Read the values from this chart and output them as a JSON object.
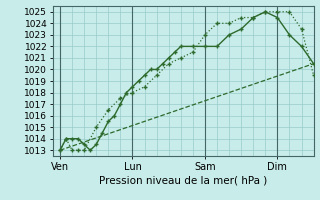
{
  "background_color": "#c8ece9",
  "grid_color": "#99cccc",
  "line_color": "#2d6a2d",
  "vline_color": "#446666",
  "ylim": [
    1012.5,
    1025.5
  ],
  "yticks": [
    1013,
    1014,
    1015,
    1016,
    1017,
    1018,
    1019,
    1020,
    1021,
    1022,
    1023,
    1024,
    1025
  ],
  "xlabel": "Pression niveau de la mer( hPa )",
  "xtick_labels": [
    "Ven",
    "Lun",
    "Sam",
    "Dim"
  ],
  "xtick_positions": [
    0,
    3,
    6,
    9
  ],
  "xlim": [
    -0.3,
    10.5
  ],
  "series1_x": [
    0.0,
    0.25,
    0.5,
    0.75,
    1.0,
    1.25,
    1.5,
    1.75,
    2.0,
    2.25,
    2.5,
    2.75,
    3.0,
    3.25,
    3.5,
    3.75,
    4.0,
    4.25,
    4.5,
    4.75,
    5.0,
    5.5,
    6.0,
    6.5,
    7.0,
    7.5,
    8.0,
    8.5,
    9.0,
    9.5,
    10.0,
    10.5
  ],
  "series1_y": [
    1013.0,
    1014.0,
    1014.0,
    1014.0,
    1013.5,
    1013.0,
    1013.5,
    1014.5,
    1015.5,
    1016.0,
    1017.0,
    1018.0,
    1018.5,
    1019.0,
    1019.5,
    1020.0,
    1020.0,
    1020.5,
    1021.0,
    1021.5,
    1022.0,
    1022.0,
    1022.0,
    1022.0,
    1023.0,
    1023.5,
    1024.5,
    1025.0,
    1024.5,
    1023.0,
    1022.0,
    1020.5
  ],
  "series2_x": [
    0.0,
    0.25,
    0.5,
    0.75,
    1.0,
    1.5,
    2.0,
    2.5,
    3.0,
    3.5,
    4.0,
    4.5,
    5.0,
    5.5,
    6.0,
    6.5,
    7.0,
    7.5,
    8.0,
    8.5,
    9.0,
    9.5,
    10.0,
    10.5
  ],
  "series2_y": [
    1013.0,
    1014.0,
    1013.0,
    1013.0,
    1013.0,
    1015.0,
    1016.5,
    1017.5,
    1018.0,
    1018.5,
    1019.5,
    1020.5,
    1021.0,
    1021.5,
    1023.0,
    1024.0,
    1024.0,
    1024.5,
    1024.5,
    1025.0,
    1025.0,
    1025.0,
    1023.5,
    1019.5
  ],
  "series3_x": [
    0.0,
    10.5
  ],
  "series3_y": [
    1013.0,
    1020.5
  ],
  "vlines_x": [
    0,
    3,
    6,
    9
  ]
}
